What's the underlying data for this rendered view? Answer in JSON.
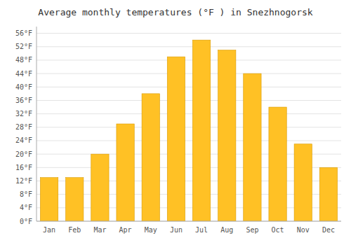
{
  "chart_data": {
    "type": "bar",
    "title": "Average monthly temperatures (°F ) in Snezhnogorsk",
    "categories": [
      "Jan",
      "Feb",
      "Mar",
      "Apr",
      "May",
      "Jun",
      "Jul",
      "Aug",
      "Sep",
      "Oct",
      "Nov",
      "Dec"
    ],
    "values": [
      13,
      13,
      20,
      29,
      38,
      49,
      54,
      51,
      44,
      34,
      23,
      16
    ],
    "color": "#FFC125",
    "ylim": [
      0,
      58
    ],
    "yticks": [
      {
        "value": 0,
        "label": "0°F"
      },
      {
        "value": 4,
        "label": "4°F"
      },
      {
        "value": 8,
        "label": "8°F"
      },
      {
        "value": 12,
        "label": "12°F"
      },
      {
        "value": 16,
        "label": "16°F"
      },
      {
        "value": 20,
        "label": "20°F"
      },
      {
        "value": 24,
        "label": "24°F"
      },
      {
        "value": 28,
        "label": "28°F"
      },
      {
        "value": 32,
        "label": "32°F"
      },
      {
        "value": 36,
        "label": "36°F"
      },
      {
        "value": 40,
        "label": "40°F"
      },
      {
        "value": 44,
        "label": "44°F"
      },
      {
        "value": 48,
        "label": "48°F"
      },
      {
        "value": 52,
        "label": "52°F"
      },
      {
        "value": 56,
        "label": "56°F"
      }
    ],
    "grid": true
  }
}
